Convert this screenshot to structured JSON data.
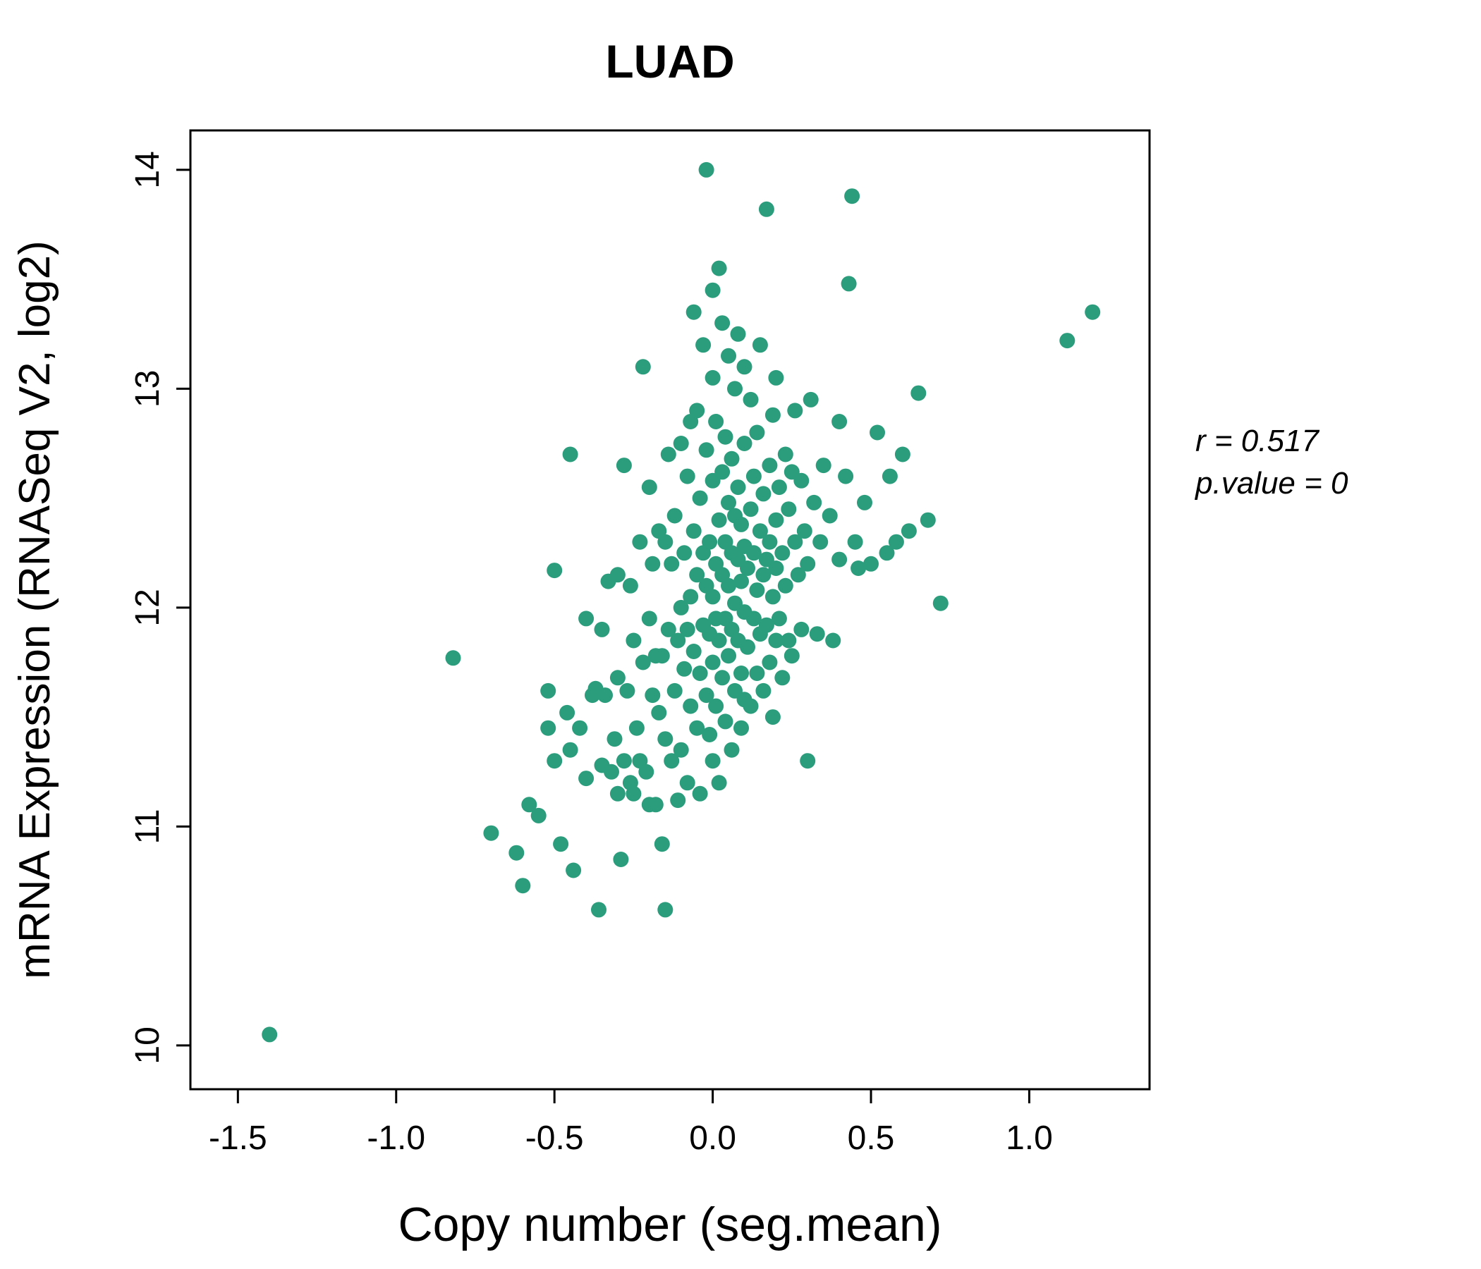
{
  "chart_data": {
    "type": "scatter",
    "title": "LUAD",
    "title_color": "#1fa07a",
    "point_color": "#2b9d7c",
    "xlabel": "Copy number (seg.mean)",
    "ylabel": "mRNA Expression (RNASeq V2, log2)",
    "xlim": [
      -1.65,
      1.38
    ],
    "ylim": [
      9.8,
      14.18
    ],
    "x_ticks": [
      -1.5,
      -1.0,
      -0.5,
      0.0,
      0.5,
      1.0
    ],
    "x_tick_labels": [
      "-1.5",
      "-1.0",
      "-0.5",
      "0.0",
      "0.5",
      "1.0"
    ],
    "y_ticks": [
      10,
      11,
      12,
      13,
      14
    ],
    "y_tick_labels": [
      "10",
      "11",
      "12",
      "13",
      "14"
    ],
    "grid": false,
    "legend": "none",
    "annotations": {
      "r_label": "r = 0.517",
      "p_label": "p.value = 0"
    },
    "points": [
      [
        -1.4,
        10.05
      ],
      [
        -0.82,
        11.77
      ],
      [
        -0.7,
        10.97
      ],
      [
        -0.62,
        10.88
      ],
      [
        -0.6,
        10.73
      ],
      [
        -0.58,
        11.1
      ],
      [
        -0.55,
        11.05
      ],
      [
        -0.52,
        11.62
      ],
      [
        -0.52,
        11.45
      ],
      [
        -0.5,
        12.17
      ],
      [
        -0.5,
        11.3
      ],
      [
        -0.48,
        10.92
      ],
      [
        -0.46,
        11.52
      ],
      [
        -0.45,
        12.7
      ],
      [
        -0.45,
        11.35
      ],
      [
        -0.44,
        10.8
      ],
      [
        -0.42,
        11.45
      ],
      [
        -0.4,
        11.95
      ],
      [
        -0.4,
        11.22
      ],
      [
        -0.38,
        11.6
      ],
      [
        -0.37,
        11.63
      ],
      [
        -0.36,
        10.62
      ],
      [
        -0.35,
        11.9
      ],
      [
        -0.35,
        11.28
      ],
      [
        -0.34,
        11.6
      ],
      [
        -0.33,
        12.12
      ],
      [
        -0.32,
        11.25
      ],
      [
        -0.31,
        11.4
      ],
      [
        -0.3,
        12.15
      ],
      [
        -0.3,
        11.68
      ],
      [
        -0.3,
        11.15
      ],
      [
        -0.29,
        10.85
      ],
      [
        -0.28,
        11.3
      ],
      [
        -0.28,
        12.65
      ],
      [
        -0.27,
        11.62
      ],
      [
        -0.26,
        11.2
      ],
      [
        -0.26,
        12.1
      ],
      [
        -0.25,
        11.85
      ],
      [
        -0.25,
        11.15
      ],
      [
        -0.24,
        11.45
      ],
      [
        -0.23,
        12.3
      ],
      [
        -0.23,
        11.3
      ],
      [
        -0.22,
        13.1
      ],
      [
        -0.22,
        11.75
      ],
      [
        -0.21,
        11.25
      ],
      [
        -0.2,
        12.55
      ],
      [
        -0.2,
        11.95
      ],
      [
        -0.2,
        11.1
      ],
      [
        -0.19,
        11.6
      ],
      [
        -0.19,
        12.2
      ],
      [
        -0.18,
        11.78
      ],
      [
        -0.18,
        11.1
      ],
      [
        -0.17,
        12.35
      ],
      [
        -0.17,
        11.52
      ],
      [
        -0.16,
        11.78
      ],
      [
        -0.16,
        10.92
      ],
      [
        -0.15,
        12.3
      ],
      [
        -0.15,
        11.4
      ],
      [
        -0.15,
        10.62
      ],
      [
        -0.14,
        11.9
      ],
      [
        -0.14,
        12.7
      ],
      [
        -0.13,
        11.3
      ],
      [
        -0.13,
        12.2
      ],
      [
        -0.12,
        11.62
      ],
      [
        -0.12,
        12.42
      ],
      [
        -0.11,
        11.85
      ],
      [
        -0.11,
        11.12
      ],
      [
        -0.1,
        12.75
      ],
      [
        -0.1,
        12.0
      ],
      [
        -0.1,
        11.35
      ],
      [
        -0.09,
        11.72
      ],
      [
        -0.09,
        12.25
      ],
      [
        -0.08,
        11.9
      ],
      [
        -0.08,
        12.6
      ],
      [
        -0.08,
        11.2
      ],
      [
        -0.07,
        12.85
      ],
      [
        -0.07,
        11.55
      ],
      [
        -0.07,
        12.05
      ],
      [
        -0.06,
        11.8
      ],
      [
        -0.06,
        12.35
      ],
      [
        -0.06,
        13.35
      ],
      [
        -0.05,
        11.45
      ],
      [
        -0.05,
        12.15
      ],
      [
        -0.05,
        12.9
      ],
      [
        -0.04,
        11.7
      ],
      [
        -0.04,
        12.5
      ],
      [
        -0.04,
        11.15
      ],
      [
        -0.03,
        12.25
      ],
      [
        -0.03,
        11.92
      ],
      [
        -0.03,
        13.2
      ],
      [
        -0.02,
        14.0
      ],
      [
        -0.02,
        12.1
      ],
      [
        -0.02,
        11.6
      ],
      [
        -0.02,
        12.72
      ],
      [
        -0.01,
        11.88
      ],
      [
        -0.01,
        12.3
      ],
      [
        -0.01,
        11.42
      ],
      [
        0.0,
        13.45
      ],
      [
        0.0,
        12.58
      ],
      [
        0.0,
        12.05
      ],
      [
        0.0,
        11.75
      ],
      [
        0.0,
        11.3
      ],
      [
        0.0,
        13.05
      ],
      [
        0.01,
        12.2
      ],
      [
        0.01,
        11.95
      ],
      [
        0.01,
        12.85
      ],
      [
        0.01,
        11.55
      ],
      [
        0.02,
        12.4
      ],
      [
        0.02,
        11.85
      ],
      [
        0.02,
        13.55
      ],
      [
        0.02,
        11.2
      ],
      [
        0.03,
        12.15
      ],
      [
        0.03,
        12.62
      ],
      [
        0.03,
        11.68
      ],
      [
        0.03,
        13.3
      ],
      [
        0.04,
        12.3
      ],
      [
        0.04,
        11.95
      ],
      [
        0.04,
        12.78
      ],
      [
        0.04,
        11.48
      ],
      [
        0.05,
        12.1
      ],
      [
        0.05,
        12.48
      ],
      [
        0.05,
        11.78
      ],
      [
        0.05,
        13.15
      ],
      [
        0.06,
        12.25
      ],
      [
        0.06,
        11.9
      ],
      [
        0.06,
        12.68
      ],
      [
        0.06,
        11.35
      ],
      [
        0.07,
        12.42
      ],
      [
        0.07,
        12.02
      ],
      [
        0.07,
        11.62
      ],
      [
        0.07,
        13.0
      ],
      [
        0.08,
        12.22
      ],
      [
        0.08,
        11.85
      ],
      [
        0.08,
        12.55
      ],
      [
        0.08,
        13.25
      ],
      [
        0.09,
        12.12
      ],
      [
        0.09,
        11.7
      ],
      [
        0.09,
        12.38
      ],
      [
        0.09,
        11.45
      ],
      [
        0.1,
        12.28
      ],
      [
        0.1,
        11.98
      ],
      [
        0.1,
        12.75
      ],
      [
        0.1,
        11.58
      ],
      [
        0.1,
        13.1
      ],
      [
        0.11,
        12.18
      ],
      [
        0.11,
        11.82
      ],
      [
        0.12,
        12.45
      ],
      [
        0.12,
        11.55
      ],
      [
        0.12,
        12.95
      ],
      [
        0.13,
        12.25
      ],
      [
        0.13,
        11.95
      ],
      [
        0.13,
        12.6
      ],
      [
        0.14,
        12.08
      ],
      [
        0.14,
        11.7
      ],
      [
        0.14,
        12.8
      ],
      [
        0.15,
        12.35
      ],
      [
        0.15,
        11.88
      ],
      [
        0.15,
        13.2
      ],
      [
        0.16,
        12.15
      ],
      [
        0.16,
        11.62
      ],
      [
        0.16,
        12.52
      ],
      [
        0.17,
        13.82
      ],
      [
        0.17,
        12.22
      ],
      [
        0.17,
        11.92
      ],
      [
        0.18,
        12.65
      ],
      [
        0.18,
        11.75
      ],
      [
        0.18,
        12.3
      ],
      [
        0.19,
        12.05
      ],
      [
        0.19,
        11.5
      ],
      [
        0.19,
        12.88
      ],
      [
        0.2,
        12.4
      ],
      [
        0.2,
        11.85
      ],
      [
        0.2,
        12.18
      ],
      [
        0.2,
        13.05
      ],
      [
        0.21,
        12.55
      ],
      [
        0.21,
        11.95
      ],
      [
        0.22,
        12.25
      ],
      [
        0.22,
        11.68
      ],
      [
        0.23,
        12.7
      ],
      [
        0.23,
        12.1
      ],
      [
        0.24,
        11.85
      ],
      [
        0.24,
        12.45
      ],
      [
        0.25,
        12.62
      ],
      [
        0.25,
        11.78
      ],
      [
        0.26,
        12.3
      ],
      [
        0.26,
        12.9
      ],
      [
        0.27,
        12.15
      ],
      [
        0.28,
        12.58
      ],
      [
        0.28,
        11.9
      ],
      [
        0.29,
        12.35
      ],
      [
        0.3,
        11.3
      ],
      [
        0.3,
        12.2
      ],
      [
        0.31,
        12.95
      ],
      [
        0.32,
        12.48
      ],
      [
        0.33,
        11.88
      ],
      [
        0.34,
        12.3
      ],
      [
        0.35,
        12.65
      ],
      [
        0.37,
        12.42
      ],
      [
        0.38,
        11.85
      ],
      [
        0.4,
        12.22
      ],
      [
        0.4,
        12.85
      ],
      [
        0.42,
        12.6
      ],
      [
        0.43,
        13.48
      ],
      [
        0.44,
        13.88
      ],
      [
        0.45,
        12.3
      ],
      [
        0.46,
        12.18
      ],
      [
        0.48,
        12.48
      ],
      [
        0.5,
        12.2
      ],
      [
        0.52,
        12.8
      ],
      [
        0.55,
        12.25
      ],
      [
        0.56,
        12.6
      ],
      [
        0.58,
        12.3
      ],
      [
        0.6,
        12.7
      ],
      [
        0.62,
        12.35
      ],
      [
        0.65,
        12.98
      ],
      [
        0.68,
        12.4
      ],
      [
        0.72,
        12.02
      ],
      [
        1.12,
        13.22
      ],
      [
        1.2,
        13.35
      ]
    ]
  }
}
